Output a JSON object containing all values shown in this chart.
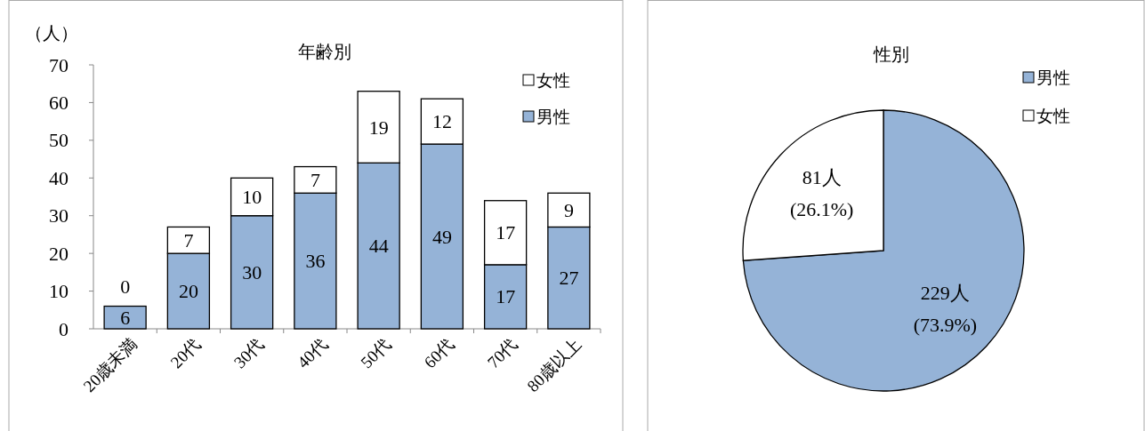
{
  "chart_data": [
    {
      "type": "bar",
      "title": "年齢別",
      "ylabel": "（人）",
      "stacked": true,
      "data_labels": true,
      "legend": "top right",
      "categories": [
        "20歳未満",
        "20代",
        "30代",
        "40代",
        "50代",
        "60代",
        "70代",
        "80歳以上"
      ],
      "ylim": [
        0,
        70
      ],
      "yticks": [
        0,
        10,
        20,
        30,
        40,
        50,
        60,
        70
      ],
      "series": [
        {
          "name": "男性",
          "color": "#95b3d7",
          "values": [
            6,
            20,
            30,
            36,
            44,
            49,
            17,
            27
          ]
        },
        {
          "name": "女性",
          "color": "#ffffff",
          "values": [
            0,
            7,
            10,
            7,
            19,
            12,
            17,
            9
          ]
        }
      ]
    },
    {
      "type": "pie",
      "title": "性別",
      "legend": "top right",
      "categories": [
        "男性",
        "女性"
      ],
      "values": [
        229,
        81
      ],
      "colors": [
        "#95b3d7",
        "#ffffff"
      ],
      "value_labels": [
        "229人\n(73.9%)",
        "81人\n(26.1%)"
      ]
    }
  ]
}
